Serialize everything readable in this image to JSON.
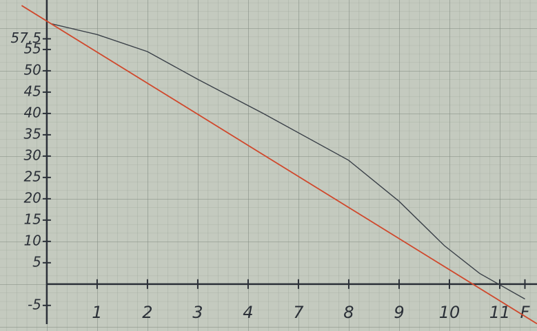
{
  "chart_data": {
    "type": "line",
    "xlim": [
      -0.93,
      9.74
    ],
    "ylim": [
      -11,
      66.6
    ],
    "xticks": [
      1,
      2,
      3,
      4,
      {
        "value": 5,
        "label": "7"
      },
      {
        "value": 6,
        "label": "8"
      },
      {
        "value": 7,
        "label": "9"
      },
      {
        "value": 8,
        "label": "10"
      },
      {
        "value": 9,
        "label": "11"
      },
      {
        "value": 9.5,
        "label": "F"
      }
    ],
    "yticks": [
      {
        "value": -5,
        "label": "-5"
      },
      5,
      10,
      15,
      20,
      25,
      30,
      35,
      40,
      45,
      50,
      55,
      {
        "value": 57.5,
        "label": "57,5"
      }
    ],
    "series": [
      {
        "color": "#3a4048",
        "x": [
          0.1,
          1,
          2,
          3,
          4.3,
          6,
          7,
          7.9,
          8.6,
          9.5
        ],
        "values": [
          61,
          58.5,
          54.5,
          48,
          40,
          29,
          19.4,
          9,
          2.5,
          -3.5
        ]
      },
      {
        "color": "#d0482c",
        "x": [
          -0.5,
          9.74
        ],
        "values": [
          65.3,
          -9.3
        ]
      }
    ]
  }
}
